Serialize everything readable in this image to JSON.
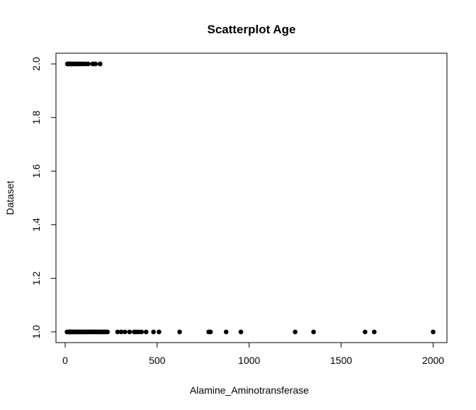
{
  "chart_data": {
    "type": "scatter",
    "title": "Scatterplot Age",
    "xlabel": "Alamine_Aminotransferase",
    "ylabel": "Dataset",
    "xlim": [
      -50,
      2075
    ],
    "ylim": [
      0.96,
      2.04
    ],
    "xticks": [
      0,
      500,
      1000,
      1500,
      2000
    ],
    "yticks": [
      1.0,
      1.2,
      1.4,
      1.6,
      1.8,
      2.0
    ],
    "ytick_labels": [
      "1.0",
      "1.2",
      "1.4",
      "1.6",
      "1.8",
      "2.0"
    ],
    "grid": false,
    "legend": "none",
    "point_color": "#000000",
    "series": [
      {
        "points": [
          [
            12,
            2
          ],
          [
            18,
            2
          ],
          [
            24,
            2
          ],
          [
            30,
            2
          ],
          [
            36,
            2
          ],
          [
            42,
            2
          ],
          [
            50,
            2
          ],
          [
            58,
            2
          ],
          [
            66,
            2
          ],
          [
            74,
            2
          ],
          [
            85,
            2
          ],
          [
            95,
            2
          ],
          [
            110,
            2
          ],
          [
            125,
            2
          ],
          [
            150,
            2
          ],
          [
            165,
            2
          ],
          [
            190,
            2
          ],
          [
            10,
            1
          ],
          [
            14,
            1
          ],
          [
            18,
            1
          ],
          [
            22,
            1
          ],
          [
            26,
            1
          ],
          [
            30,
            1
          ],
          [
            34,
            1
          ],
          [
            38,
            1
          ],
          [
            42,
            1
          ],
          [
            46,
            1
          ],
          [
            50,
            1
          ],
          [
            55,
            1
          ],
          [
            60,
            1
          ],
          [
            65,
            1
          ],
          [
            70,
            1
          ],
          [
            75,
            1
          ],
          [
            80,
            1
          ],
          [
            85,
            1
          ],
          [
            90,
            1
          ],
          [
            95,
            1
          ],
          [
            100,
            1
          ],
          [
            106,
            1
          ],
          [
            112,
            1
          ],
          [
            118,
            1
          ],
          [
            124,
            1
          ],
          [
            130,
            1
          ],
          [
            136,
            1
          ],
          [
            142,
            1
          ],
          [
            148,
            1
          ],
          [
            154,
            1
          ],
          [
            160,
            1
          ],
          [
            166,
            1
          ],
          [
            172,
            1
          ],
          [
            178,
            1
          ],
          [
            184,
            1
          ],
          [
            190,
            1
          ],
          [
            196,
            1
          ],
          [
            202,
            1
          ],
          [
            208,
            1
          ],
          [
            215,
            1
          ],
          [
            222,
            1
          ],
          [
            230,
            1
          ],
          [
            285,
            1
          ],
          [
            305,
            1
          ],
          [
            325,
            1
          ],
          [
            350,
            1
          ],
          [
            375,
            1
          ],
          [
            385,
            1
          ],
          [
            400,
            1
          ],
          [
            415,
            1
          ],
          [
            440,
            1
          ],
          [
            480,
            1
          ],
          [
            510,
            1
          ],
          [
            622,
            1
          ],
          [
            780,
            1
          ],
          [
            790,
            1
          ],
          [
            875,
            1
          ],
          [
            955,
            1
          ],
          [
            1250,
            1
          ],
          [
            1350,
            1
          ],
          [
            1630,
            1
          ],
          [
            1680,
            1
          ],
          [
            2000,
            1
          ]
        ]
      }
    ]
  }
}
